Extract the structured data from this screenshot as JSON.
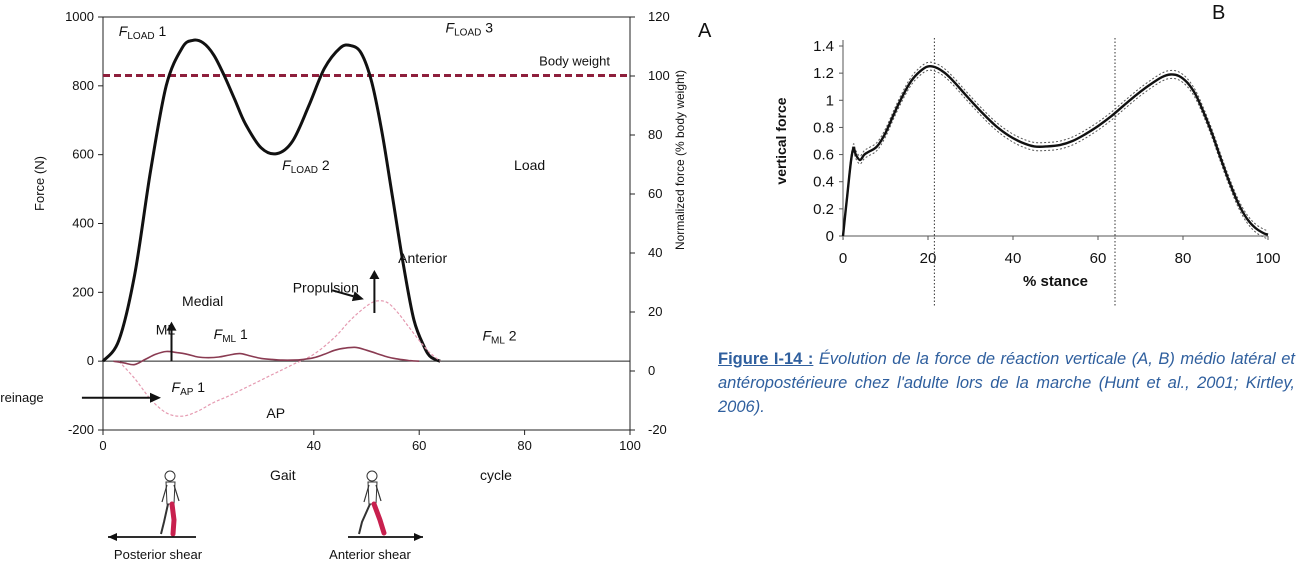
{
  "panel_labels": {
    "a": "A",
    "b": "B"
  },
  "caption": {
    "title": "Figure I-14 :",
    "body": " Évolution de la force de réaction verticale (A, B) médio latéral et antéropostérieure chez l'adulte lors de la marche (Hunt et al., 2001; Kirtley, 2006)."
  },
  "colors": {
    "load": "#111111",
    "body_weight": "#8e1f3c",
    "ap": "#e59ab1",
    "ml": "#8a3b52",
    "walker_leg": "#c8204e"
  },
  "chart_data": [
    {
      "type": "line",
      "xlabel_left": "Gait",
      "xlabel_right": "cycle",
      "ylabel": "Force (N)",
      "y2label": "Normalized force (% body weight)",
      "xlim": [
        0,
        100
      ],
      "ylim": [
        -200,
        1000
      ],
      "y2lim": [
        -20,
        120
      ],
      "x_ticks": [
        "0",
        "40",
        "60",
        "80",
        "100"
      ],
      "y_ticks": [
        "-200",
        "0",
        "200",
        "400",
        "600",
        "800",
        "1000"
      ],
      "y2_ticks": [
        "-20",
        "0",
        "20",
        "40",
        "60",
        "80",
        "100",
        "120"
      ],
      "grid": false,
      "body_weight": {
        "label": "Body weight",
        "value": 830
      },
      "series": [
        {
          "name": "Load",
          "x": [
            0,
            3,
            6,
            9,
            12,
            15,
            17,
            19,
            21,
            23,
            25,
            27,
            30,
            33,
            36,
            39,
            42,
            45,
            47,
            49,
            51,
            53,
            55,
            57,
            59,
            61,
            62,
            63,
            64
          ],
          "y": [
            0,
            60,
            250,
            550,
            800,
            910,
            932,
            925,
            890,
            830,
            760,
            690,
            620,
            603,
            640,
            740,
            850,
            910,
            917,
            895,
            810,
            660,
            470,
            280,
            120,
            40,
            15,
            5,
            0
          ]
        },
        {
          "name": "AP",
          "x": [
            3,
            6,
            9,
            12,
            15,
            18,
            21,
            24,
            28,
            32,
            36,
            40,
            44,
            47,
            50,
            52,
            54,
            56,
            58,
            60,
            62,
            64
          ],
          "y": [
            0,
            -50,
            -110,
            -150,
            -160,
            -145,
            -120,
            -100,
            -70,
            -40,
            -10,
            20,
            70,
            120,
            160,
            175,
            170,
            140,
            100,
            60,
            25,
            0
          ]
        },
        {
          "name": "ML",
          "x": [
            2,
            4,
            6,
            8,
            10,
            12,
            14,
            16,
            18,
            20,
            22,
            24,
            26,
            28,
            30,
            32,
            34,
            36,
            38,
            40,
            42,
            44,
            46,
            48,
            50,
            52,
            54,
            56,
            58,
            60
          ],
          "y": [
            0,
            -5,
            -10,
            5,
            20,
            28,
            25,
            20,
            12,
            10,
            12,
            18,
            22,
            15,
            8,
            5,
            3,
            3,
            5,
            10,
            20,
            32,
            38,
            40,
            32,
            22,
            12,
            6,
            2,
            0
          ]
        }
      ],
      "annotations": [
        {
          "key": "f_load1",
          "main": "F",
          "sub": "LOAD",
          "suffix": " 1",
          "x": 3,
          "y": 945
        },
        {
          "key": "f_load2",
          "main": "F",
          "sub": "LOAD",
          "suffix": " 2",
          "x": 34,
          "y": 555
        },
        {
          "key": "f_load3",
          "main": "F",
          "sub": "LOAD",
          "suffix": " 3",
          "x": 65,
          "y": 955
        },
        {
          "key": "f_ml1",
          "main": "F",
          "sub": "ML",
          "suffix": " 1",
          "x": 21,
          "y": 65
        },
        {
          "key": "f_ml2",
          "main": "F",
          "sub": "ML",
          "suffix": " 2",
          "x": 72,
          "y": 60
        },
        {
          "key": "f_ap1",
          "main": "F",
          "sub": "AP",
          "suffix": " 1",
          "x": 13,
          "y": -90
        }
      ],
      "labels": [
        {
          "key": "load",
          "text": "Load",
          "x": 78,
          "y": 555
        },
        {
          "key": "ml",
          "text": "ML",
          "x": 10,
          "y": 78
        },
        {
          "key": "medial",
          "text": "Medial",
          "x": 15,
          "y": 160
        },
        {
          "key": "ap",
          "text": "AP",
          "x": 31,
          "y": -165
        },
        {
          "key": "anterior",
          "text": "Anterior",
          "x": 56,
          "y": 285
        },
        {
          "key": "propulsion",
          "text": "Propulsion",
          "x": 36,
          "y": 200
        },
        {
          "key": "freinage",
          "text": "Freinage",
          "x": -21,
          "y": -118
        }
      ],
      "shear": {
        "posterior": "Posterior shear",
        "anterior": "Anterior shear"
      }
    },
    {
      "type": "line",
      "xlabel": "% stance",
      "ylabel": "vertical force",
      "xlim": [
        0,
        100
      ],
      "ylim": [
        0,
        1.4
      ],
      "x_ticks": [
        "0",
        "20",
        "40",
        "60",
        "80",
        "100"
      ],
      "y_ticks": [
        "0",
        "0.2",
        "0.4",
        "0.6",
        "0.8",
        "1",
        "1.2",
        "1.4"
      ],
      "grid": false,
      "vlines": [
        21.5,
        64
      ],
      "series": [
        {
          "x": [
            0,
            0.5,
            1,
            1.5,
            2,
            2.5,
            3,
            4,
            5,
            6,
            8,
            10,
            12,
            14,
            16,
            18,
            20,
            22,
            24,
            26,
            28,
            30,
            33,
            36,
            39,
            42,
            45,
            48,
            51,
            54,
            57,
            60,
            63,
            66,
            69,
            72,
            75,
            77,
            79,
            81,
            83,
            85,
            87,
            89,
            91,
            93,
            95,
            97,
            99,
            100
          ],
          "y": [
            0,
            0.15,
            0.3,
            0.45,
            0.58,
            0.65,
            0.6,
            0.56,
            0.6,
            0.62,
            0.66,
            0.76,
            0.9,
            1.03,
            1.14,
            1.21,
            1.25,
            1.24,
            1.2,
            1.14,
            1.07,
            1.0,
            0.9,
            0.81,
            0.74,
            0.69,
            0.66,
            0.66,
            0.67,
            0.7,
            0.75,
            0.81,
            0.88,
            0.96,
            1.04,
            1.11,
            1.17,
            1.19,
            1.18,
            1.13,
            1.04,
            0.9,
            0.74,
            0.56,
            0.39,
            0.24,
            0.13,
            0.06,
            0.02,
            0.01
          ]
        }
      ]
    }
  ]
}
